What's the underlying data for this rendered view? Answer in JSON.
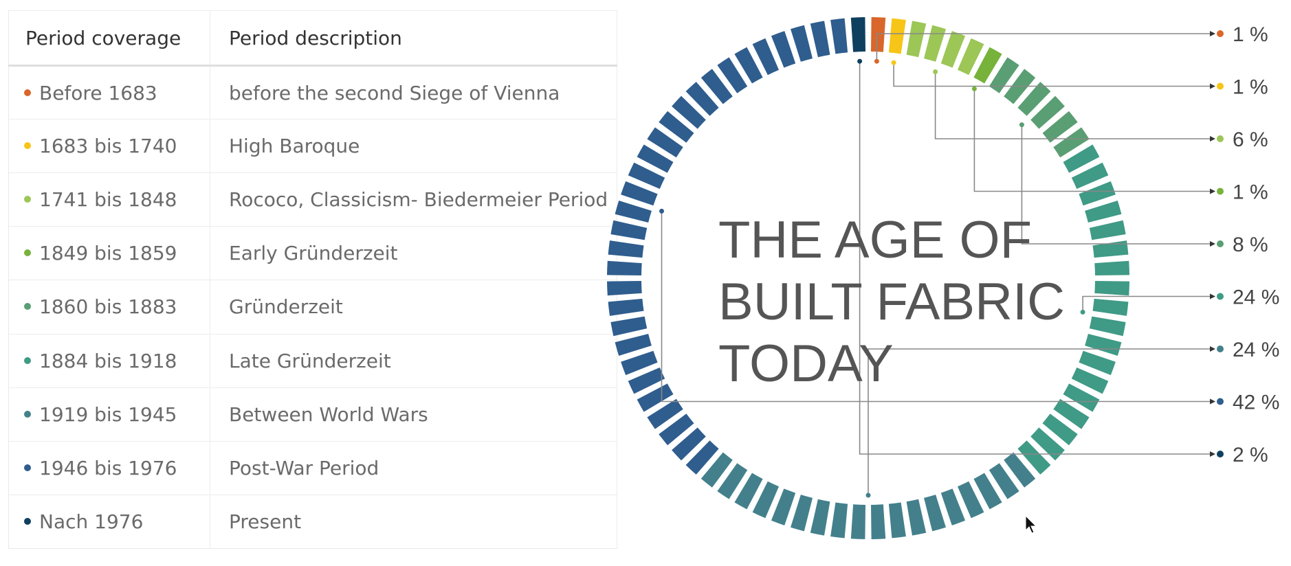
{
  "table": {
    "headers": {
      "coverage": "Period coverage",
      "description": "Period description"
    },
    "rows": [
      {
        "coverage": "Before 1683",
        "description": "before the second Siege of Vienna",
        "color": "#d9662a"
      },
      {
        "coverage": "1683 bis 1740",
        "description": "High Baroque",
        "color": "#f7c518"
      },
      {
        "coverage": "1741 bis 1848",
        "description": "Rococo, Classicism- Biedermeier Period",
        "color": "#9cc656"
      },
      {
        "coverage": "1849 bis 1859",
        "description": "Early Gründerzeit",
        "color": "#77b23b"
      },
      {
        "coverage": "1860 bis 1883",
        "description": "Gründerzeit",
        "color": "#5a9e73"
      },
      {
        "coverage": "1884 bis 1918",
        "description": "Late Gründerzeit",
        "color": "#3f9a86"
      },
      {
        "coverage": "1919 bis 1945",
        "description": "Between World Wars",
        "color": "#43808c"
      },
      {
        "coverage": "1946 bis 1976",
        "description": "Post-War Period",
        "color": "#2f5d8e"
      },
      {
        "coverage": "Nach 1976",
        "description": "Present",
        "color": "#0e3f5f"
      }
    ]
  },
  "chart_data": {
    "type": "pie",
    "title": "THE AGE OF BUILT FABRIC TODAY",
    "title_lines": [
      "THE AGE OF",
      "BUILT FABRIC",
      "TODAY"
    ],
    "categories": [
      "Before 1683",
      "1683 bis 1740",
      "1741 bis 1848",
      "1849 bis 1859",
      "1860 bis 1883",
      "1884 bis 1918",
      "1919 bis 1945",
      "1946 bis 1976",
      "Nach 1976"
    ],
    "values": [
      1,
      1,
      6,
      1,
      8,
      24,
      24,
      42,
      2
    ],
    "value_labels": [
      "1 %",
      "1 %",
      "6 %",
      "1 %",
      "8 %",
      "24 %",
      "24 %",
      "42 %",
      "2 %"
    ],
    "colors": [
      "#d9662a",
      "#f7c518",
      "#9cc656",
      "#77b23b",
      "#5a9e73",
      "#3f9a86",
      "#43808c",
      "#2f5d8e",
      "#0e3f5f"
    ],
    "segments_total": 80
  }
}
